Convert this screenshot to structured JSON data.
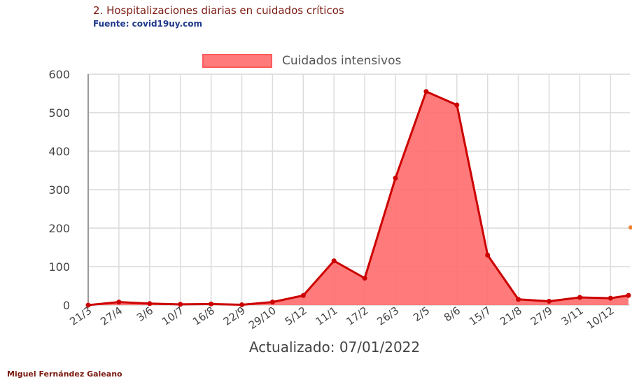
{
  "header": {
    "title": "2. Hospitalizaciones diarias en cuidados críticos",
    "source": "Fuente: covid19uy.com"
  },
  "footer": {
    "author": "Miguel Fernández Galeano"
  },
  "colors": {
    "line": "#cc0000",
    "fill": "#ff6b6b",
    "title": "#7a1a10",
    "source": "#1f3a8a"
  },
  "chart_data": {
    "type": "area",
    "title": "",
    "xlabel": "Actualizado: 07/01/2022",
    "ylabel": "",
    "ylim": [
      0,
      600
    ],
    "yticks": [
      0,
      100,
      200,
      300,
      400,
      500,
      600
    ],
    "grid": true,
    "legend_position": "top",
    "x_tick_labels": [
      "21/3",
      "27/4",
      "3/6",
      "10/7",
      "16/8",
      "22/9",
      "29/10",
      "5/12",
      "11/1",
      "17/2",
      "26/3",
      "2/5",
      "8/6",
      "15/7",
      "21/8",
      "27/9",
      "3/11",
      "10/12"
    ],
    "series": [
      {
        "name": "Cuidados intensivos",
        "x": [
          "21/3",
          "27/4",
          "3/6",
          "10/7",
          "16/8",
          "22/9",
          "29/10",
          "5/12",
          "11/1",
          "17/2",
          "26/3",
          "2/5",
          "8/6",
          "15/7",
          "21/8",
          "27/9",
          "3/11",
          "10/12"
        ],
        "points": [
          [
            "21/3",
            0
          ],
          [
            "27/4",
            8
          ],
          [
            "3/6",
            4
          ],
          [
            "10/7",
            2
          ],
          [
            "16/8",
            3
          ],
          [
            "22/9",
            1
          ],
          [
            "29/10",
            8
          ],
          [
            "5/12",
            25
          ],
          [
            "11/1",
            115
          ],
          [
            "17/2",
            70
          ],
          [
            "26/3",
            330
          ],
          [
            "2/5",
            555
          ],
          [
            "8/6",
            520
          ],
          [
            "15/7",
            130
          ],
          [
            "21/8",
            15
          ],
          [
            "27/9",
            10
          ],
          [
            "3/11",
            20
          ],
          [
            "10/12",
            18
          ]
        ]
      }
    ]
  }
}
